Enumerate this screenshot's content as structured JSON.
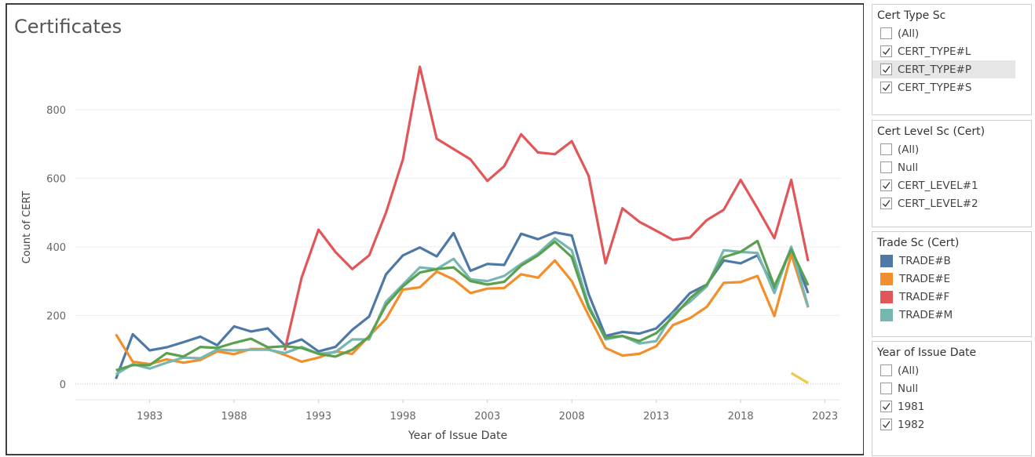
{
  "chart_data": {
    "type": "line",
    "title": "Certificates",
    "x_label": "Year of Issue Date",
    "y_label": "Count of CERT",
    "x": [
      1981,
      1982,
      1983,
      1984,
      1985,
      1986,
      1987,
      1988,
      1989,
      1990,
      1991,
      1992,
      1993,
      1994,
      1995,
      1996,
      1997,
      1998,
      1999,
      2000,
      2001,
      2002,
      2003,
      2004,
      2005,
      2006,
      2007,
      2008,
      2009,
      2010,
      2011,
      2012,
      2013,
      2014,
      2015,
      2016,
      2017,
      2018,
      2019,
      2020,
      2021,
      2022
    ],
    "xlim": [
      1978.6,
      2023.9
    ],
    "xticks": [
      1983,
      1988,
      1993,
      1998,
      2003,
      2008,
      2013,
      2018,
      2023
    ],
    "ylim": [
      -46,
      955
    ],
    "yticks": [
      0,
      200,
      400,
      600,
      800
    ],
    "grid": true,
    "series": [
      {
        "name": "TRADE#B",
        "color": "#4e79a7",
        "values": [
          15,
          145,
          98,
          107,
          122,
          138,
          113,
          168,
          153,
          162,
          113,
          130,
          95,
          108,
          158,
          197,
          320,
          375,
          398,
          372,
          440,
          330,
          350,
          347,
          438,
          422,
          442,
          433,
          262,
          140,
          152,
          147,
          162,
          210,
          265,
          290,
          360,
          352,
          375,
          278,
          398,
          265
        ]
      },
      {
        "name": "TRADE#E",
        "color": "#f28e2b",
        "values": [
          145,
          65,
          58,
          72,
          62,
          70,
          95,
          87,
          102,
          102,
          85,
          65,
          77,
          95,
          88,
          140,
          190,
          275,
          282,
          328,
          305,
          265,
          278,
          280,
          320,
          310,
          360,
          300,
          200,
          105,
          83,
          88,
          110,
          172,
          192,
          225,
          295,
          297,
          315,
          198,
          378,
          223
        ]
      },
      {
        "name": "TRADE#F",
        "color": "#e15759",
        "values": [
          null,
          null,
          null,
          null,
          null,
          null,
          null,
          null,
          null,
          null,
          98,
          310,
          450,
          385,
          335,
          375,
          500,
          655,
          925,
          715,
          685,
          655,
          592,
          635,
          728,
          675,
          670,
          708,
          607,
          352,
          512,
          473,
          447,
          420,
          427,
          478,
          508,
          595,
          512,
          425,
          595,
          358
        ]
      },
      {
        "name": "TRADE#M",
        "color": "#76b7b2",
        "values": [
          28,
          58,
          45,
          62,
          77,
          75,
          100,
          98,
          100,
          100,
          90,
          108,
          88,
          93,
          130,
          130,
          240,
          290,
          340,
          335,
          365,
          305,
          300,
          315,
          350,
          380,
          425,
          390,
          230,
          130,
          140,
          118,
          125,
          205,
          240,
          285,
          390,
          385,
          382,
          265,
          400,
          225
        ]
      },
      {
        "color": "#59a14f",
        "values": [
          40,
          55,
          55,
          90,
          80,
          108,
          105,
          120,
          132,
          107,
          110,
          105,
          88,
          80,
          100,
          138,
          230,
          285,
          325,
          335,
          340,
          300,
          290,
          298,
          345,
          375,
          415,
          370,
          222,
          135,
          140,
          125,
          148,
          195,
          250,
          290,
          370,
          385,
          417,
          285,
          392,
          288
        ]
      },
      {
        "color": "#edc948",
        "values": [
          null,
          null,
          null,
          null,
          null,
          null,
          null,
          null,
          null,
          null,
          null,
          null,
          null,
          null,
          null,
          null,
          null,
          null,
          null,
          null,
          null,
          null,
          null,
          null,
          null,
          null,
          null,
          null,
          null,
          null,
          null,
          null,
          null,
          null,
          null,
          null,
          null,
          null,
          null,
          null,
          32,
          3
        ]
      }
    ]
  },
  "filters": [
    {
      "title": "Cert Type Sc",
      "items": [
        {
          "label": "(All)",
          "checked": false
        },
        {
          "label": "CERT_TYPE#L",
          "checked": true
        },
        {
          "label": "CERT_TYPE#P",
          "checked": true,
          "highlighted": true
        },
        {
          "label": "CERT_TYPE#S",
          "checked": true
        }
      ]
    },
    {
      "title": "Cert Level Sc (Cert)",
      "items": [
        {
          "label": "(All)",
          "checked": false
        },
        {
          "label": "Null",
          "checked": false
        },
        {
          "label": "CERT_LEVEL#1",
          "checked": true
        },
        {
          "label": "CERT_LEVEL#2",
          "checked": true
        }
      ]
    }
  ],
  "legend_title": "Trade Sc (Cert)",
  "year_filter": {
    "title": "Year of Issue Date",
    "items": [
      {
        "label": "(All)",
        "checked": false
      },
      {
        "label": "Null",
        "checked": false
      },
      {
        "label": "1981",
        "checked": true
      },
      {
        "label": "1982",
        "checked": true
      }
    ]
  }
}
